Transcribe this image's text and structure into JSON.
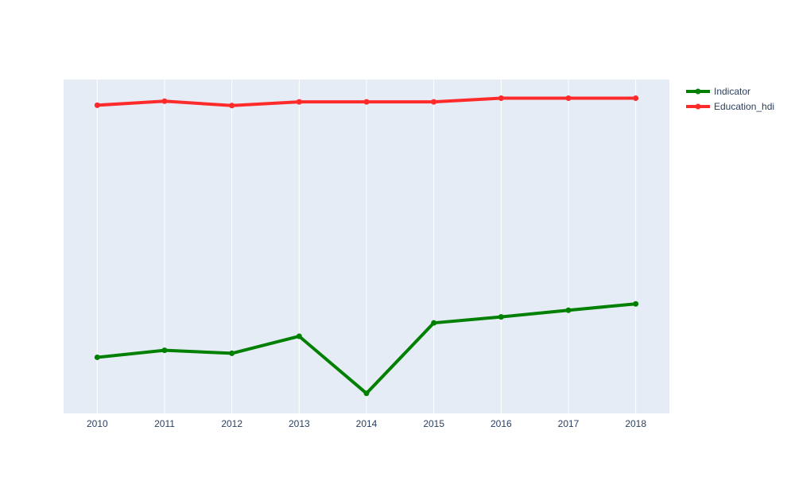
{
  "chart_data": {
    "type": "line",
    "x": [
      2010,
      2011,
      2012,
      2013,
      2014,
      2015,
      2016,
      2017,
      2018
    ],
    "x_tick_labels": [
      "2010",
      "2011",
      "2012",
      "2013",
      "2014",
      "2015",
      "2016",
      "2017",
      "2018"
    ],
    "xlim": [
      2009.5,
      2018.5
    ],
    "ylim": [
      0,
      1
    ],
    "series": [
      {
        "name": "Indicator",
        "color": "#008000",
        "values": [
          0.168,
          0.189,
          0.18,
          0.231,
          0.06,
          0.271,
          0.289,
          0.309,
          0.328
        ]
      },
      {
        "name": "Education_hdi",
        "color": "#ff2a2a",
        "values": [
          0.923,
          0.935,
          0.922,
          0.933,
          0.933,
          0.933,
          0.944,
          0.944,
          0.944
        ]
      }
    ],
    "grid": {
      "vertical": true,
      "horizontal": false
    },
    "plot_background": "#e5ecf6",
    "legend": {
      "position": "top-right"
    }
  }
}
